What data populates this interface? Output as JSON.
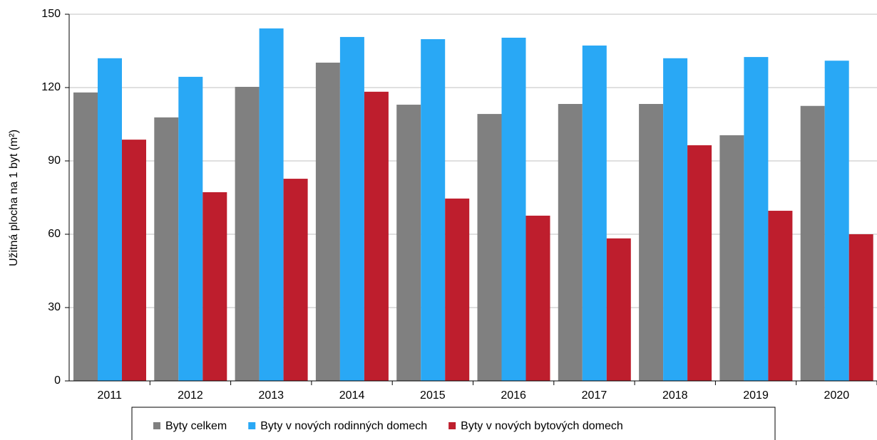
{
  "chart_data": {
    "type": "bar",
    "y_label": "Užitná plocha na 1 byt (m²)",
    "categories": [
      "2011",
      "2012",
      "2013",
      "2014",
      "2015",
      "2016",
      "2017",
      "2018",
      "2019",
      "2020"
    ],
    "series": [
      {
        "name": "Byty celkem",
        "color": "#808080",
        "values": [
          118,
          107.8,
          120.3,
          130.2,
          113,
          109.2,
          113.3,
          113.3,
          100.5,
          112.5
        ]
      },
      {
        "name": "Byty v nových rodinných domech",
        "color": "#29a8f5",
        "values": [
          132,
          124.4,
          144.2,
          140.7,
          139.8,
          140.4,
          137.2,
          132,
          132.5,
          131
        ]
      },
      {
        "name": "Byty v nových bytových domech",
        "color": "#be1e2d",
        "values": [
          98.7,
          77.2,
          82.7,
          118.3,
          74.6,
          67.6,
          58.3,
          96.4,
          69.6,
          60
        ]
      }
    ],
    "ylim": [
      0,
      150
    ],
    "yticks": [
      0,
      30,
      60,
      90,
      120,
      150
    ],
    "grid": true,
    "legend": "bottom"
  }
}
